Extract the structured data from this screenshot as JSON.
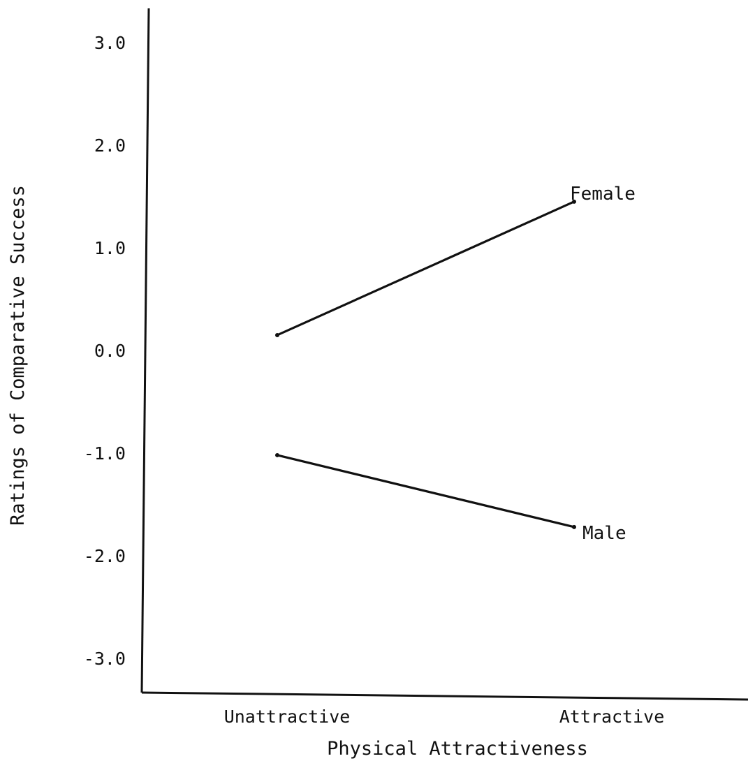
{
  "chart_data": {
    "type": "line",
    "categories": [
      "Unattractive",
      "Attractive"
    ],
    "series": [
      {
        "name": "Female",
        "values": [
          0.15,
          1.45
        ]
      },
      {
        "name": "Male",
        "values": [
          -1.02,
          -1.72
        ]
      }
    ],
    "xlabel": "Physical Attractiveness",
    "ylabel": "Ratings of Comparative Success",
    "yticks": [
      "3.0",
      "2.0",
      "1.0",
      "0.0",
      "-1.0",
      "-2.0",
      "-3.0"
    ],
    "ytick_values": [
      3,
      2,
      1,
      0,
      -1,
      -2,
      -3
    ],
    "ylim": [
      -3.5,
      3.5
    ],
    "grid": false,
    "legend": "series labels placed at right end of lines",
    "colors": {
      "lines": "#111111",
      "text": "#111111",
      "background": "#ffffff"
    }
  }
}
